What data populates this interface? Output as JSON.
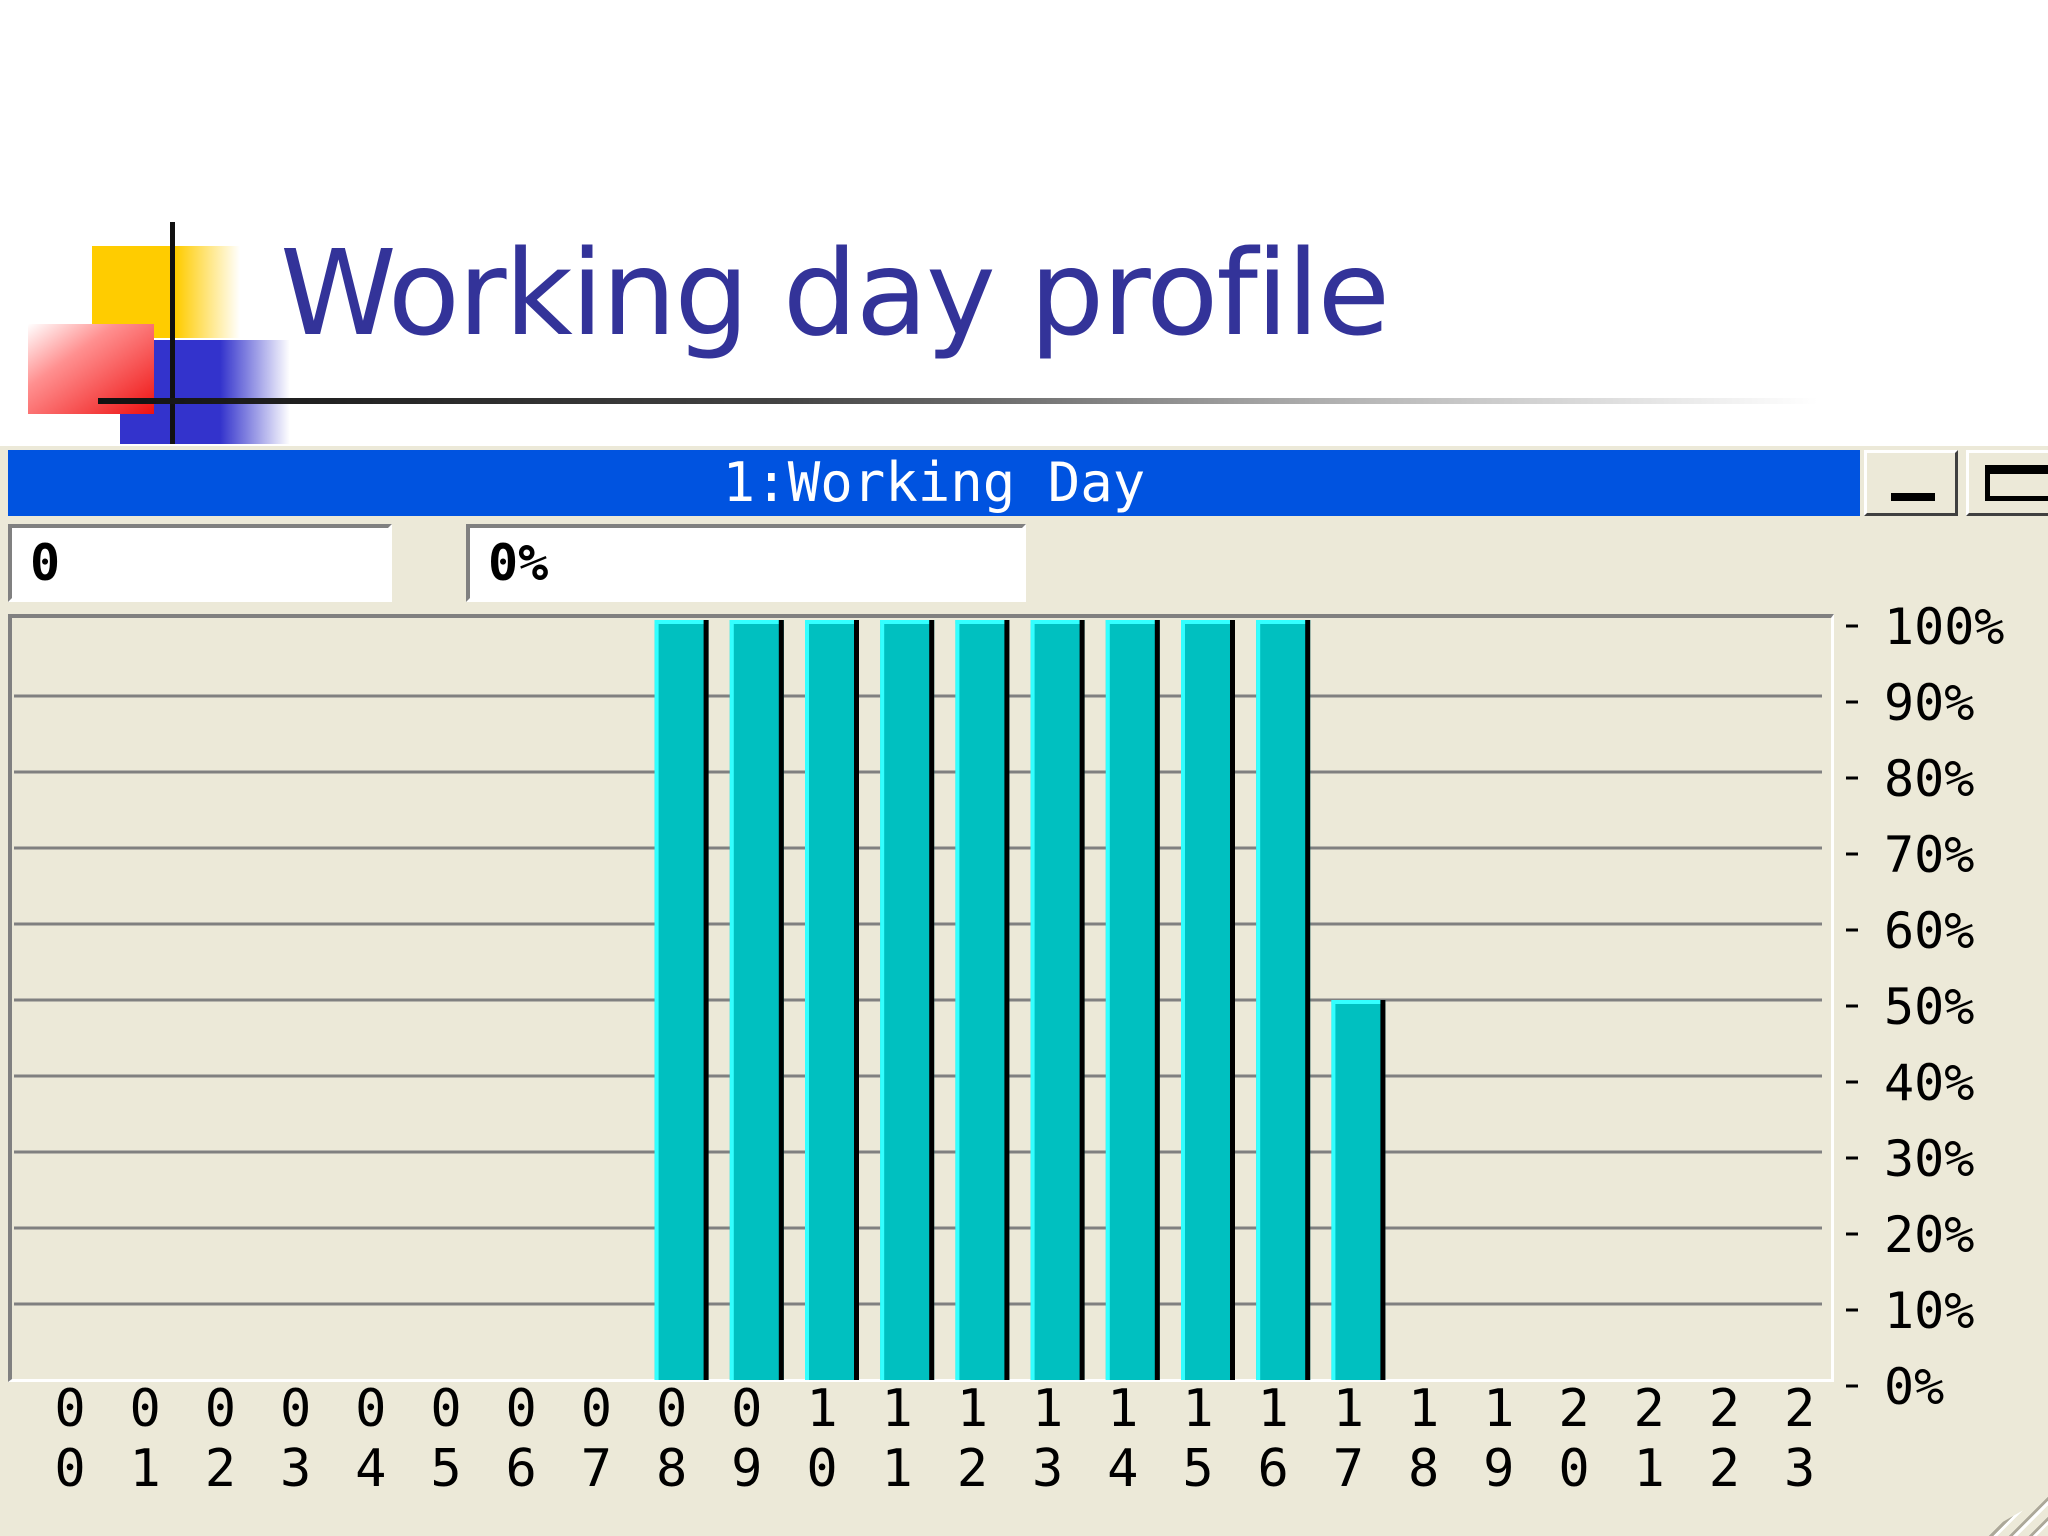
{
  "slide": {
    "title": "Working day profile"
  },
  "window": {
    "title": "1:Working Day",
    "hour_field": "0",
    "value_field": "0%"
  },
  "chart_data": {
    "type": "bar",
    "title": "",
    "xlabel": "",
    "ylabel": "",
    "categories": [
      "00",
      "01",
      "02",
      "03",
      "04",
      "05",
      "06",
      "07",
      "08",
      "09",
      "10",
      "11",
      "12",
      "13",
      "14",
      "15",
      "16",
      "17",
      "18",
      "19",
      "20",
      "21",
      "22",
      "23"
    ],
    "values": [
      0,
      0,
      0,
      0,
      0,
      0,
      0,
      0,
      100,
      100,
      100,
      100,
      100,
      100,
      100,
      100,
      100,
      50,
      0,
      0,
      0,
      0,
      0,
      0
    ],
    "ylim": [
      0,
      100
    ],
    "yticks": [
      "100%",
      "90%",
      "80%",
      "70%",
      "60%",
      "50%",
      "40%",
      "30%",
      "20%",
      "10%",
      "0%"
    ],
    "y_axis_position": "right",
    "grid": true,
    "colors": {
      "bar": "#00c0c0",
      "bar_highlight": "#33ffff",
      "bar_shadow": "#000000",
      "grid": "#808080",
      "background": "#ece9d8",
      "title_bar": "#0053e0"
    }
  }
}
